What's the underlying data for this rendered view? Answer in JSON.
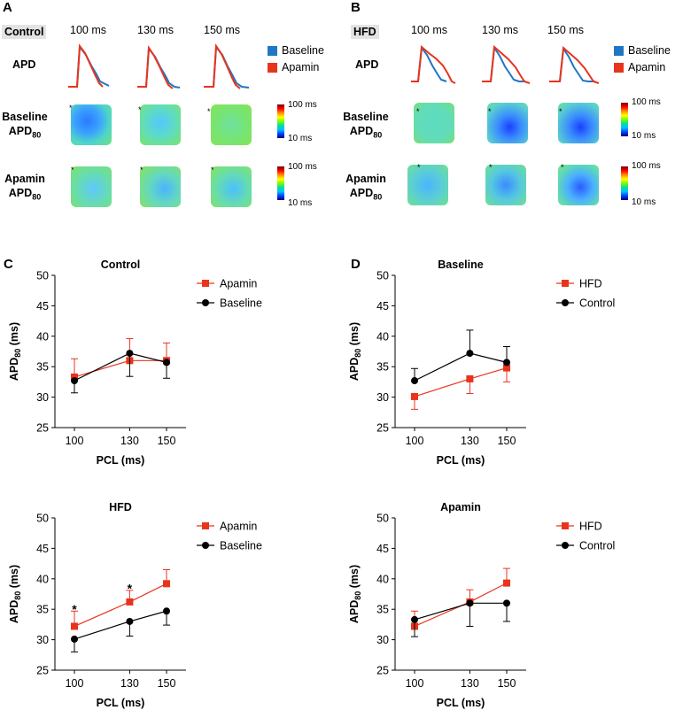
{
  "top": {
    "panel_a_letter": "A",
    "panel_b_letter": "B",
    "panel_a_group": "Control",
    "panel_b_group": "HFD",
    "pcl_labels": [
      "100 ms",
      "130 ms",
      "150 ms"
    ],
    "row_apd": "APD",
    "row_baseline": "Baseline",
    "row_apamin": "Apamin",
    "apd_sub_main": "APD",
    "apd_sub_80": "80",
    "legend": [
      {
        "label": "Baseline",
        "color": "#1f77c4"
      },
      {
        "label": "Apamin",
        "color": "#e8341c"
      }
    ],
    "colorbar_high": "100 ms",
    "colorbar_low": "10 ms",
    "star": "*"
  },
  "chart_data": [
    {
      "id": "C",
      "panel_letter": "C",
      "type": "line",
      "title": "Control",
      "xlabel": "PCL (ms)",
      "ylabel_main": "APD",
      "ylabel_sub": "80",
      "ylabel_unit": " (ms)",
      "x": [
        100,
        130,
        150
      ],
      "ylim": [
        25,
        50
      ],
      "yticks": [
        25,
        30,
        35,
        40,
        45,
        50
      ],
      "series": [
        {
          "name": "Apamin",
          "color": "#e8341c",
          "marker": "square",
          "values": [
            33.3,
            36.0,
            36.0
          ],
          "err": [
            3.0,
            3.6,
            2.9
          ],
          "err_dir": "up"
        },
        {
          "name": "Baseline",
          "color": "#000000",
          "marker": "circle",
          "values": [
            32.7,
            37.2,
            35.7
          ],
          "err": [
            2.0,
            3.8,
            2.6
          ],
          "err_dir": "down"
        }
      ],
      "annotations": []
    },
    {
      "id": "D1",
      "panel_letter": "D",
      "type": "line",
      "title": "Baseline",
      "xlabel": "PCL (ms)",
      "ylabel_main": "APD",
      "ylabel_sub": "80",
      "ylabel_unit": " (ms)",
      "x": [
        100,
        130,
        150
      ],
      "ylim": [
        25,
        50
      ],
      "yticks": [
        25,
        30,
        35,
        40,
        45,
        50
      ],
      "series": [
        {
          "name": "HFD",
          "color": "#e8341c",
          "marker": "square",
          "values": [
            30.1,
            33.0,
            34.8
          ],
          "err": [
            2.1,
            2.4,
            2.3
          ],
          "err_dir": "down"
        },
        {
          "name": "Control",
          "color": "#000000",
          "marker": "circle",
          "values": [
            32.7,
            37.2,
            35.7
          ],
          "err": [
            2.0,
            3.8,
            2.6
          ],
          "err_dir": "up"
        }
      ],
      "annotations": []
    },
    {
      "id": "C2",
      "panel_letter": "",
      "type": "line",
      "title": "HFD",
      "xlabel": "PCL (ms)",
      "ylabel_main": "APD",
      "ylabel_sub": "80",
      "ylabel_unit": " (ms)",
      "x": [
        100,
        130,
        150
      ],
      "ylim": [
        25,
        50
      ],
      "yticks": [
        25,
        30,
        35,
        40,
        45,
        50
      ],
      "series": [
        {
          "name": "Apamin",
          "color": "#e8341c",
          "marker": "square",
          "values": [
            32.2,
            36.2,
            39.2
          ],
          "err": [
            2.5,
            1.9,
            2.3
          ],
          "err_dir": "up"
        },
        {
          "name": "Baseline",
          "color": "#000000",
          "marker": "circle",
          "values": [
            30.1,
            33.0,
            34.7
          ],
          "err": [
            2.1,
            2.4,
            2.3
          ],
          "err_dir": "down"
        }
      ],
      "annotations": [
        {
          "x": 100,
          "y": 35.2,
          "text": "*"
        },
        {
          "x": 130,
          "y": 38.6,
          "text": "*"
        }
      ]
    },
    {
      "id": "D2",
      "panel_letter": "",
      "type": "line",
      "title": "Apamin",
      "xlabel": "PCL (ms)",
      "ylabel_main": "APD",
      "ylabel_sub": "80",
      "ylabel_unit": " (ms)",
      "x": [
        100,
        130,
        150
      ],
      "ylim": [
        25,
        50
      ],
      "yticks": [
        25,
        30,
        35,
        40,
        45,
        50
      ],
      "series": [
        {
          "name": "HFD",
          "color": "#e8341c",
          "marker": "square",
          "values": [
            32.2,
            36.2,
            39.3
          ],
          "err": [
            2.5,
            2.0,
            2.4
          ],
          "err_dir": "up"
        },
        {
          "name": "Control",
          "color": "#000000",
          "marker": "circle",
          "values": [
            33.3,
            36.0,
            36.0
          ],
          "err": [
            2.8,
            3.8,
            3.0
          ],
          "err_dir": "down"
        }
      ],
      "annotations": []
    }
  ]
}
